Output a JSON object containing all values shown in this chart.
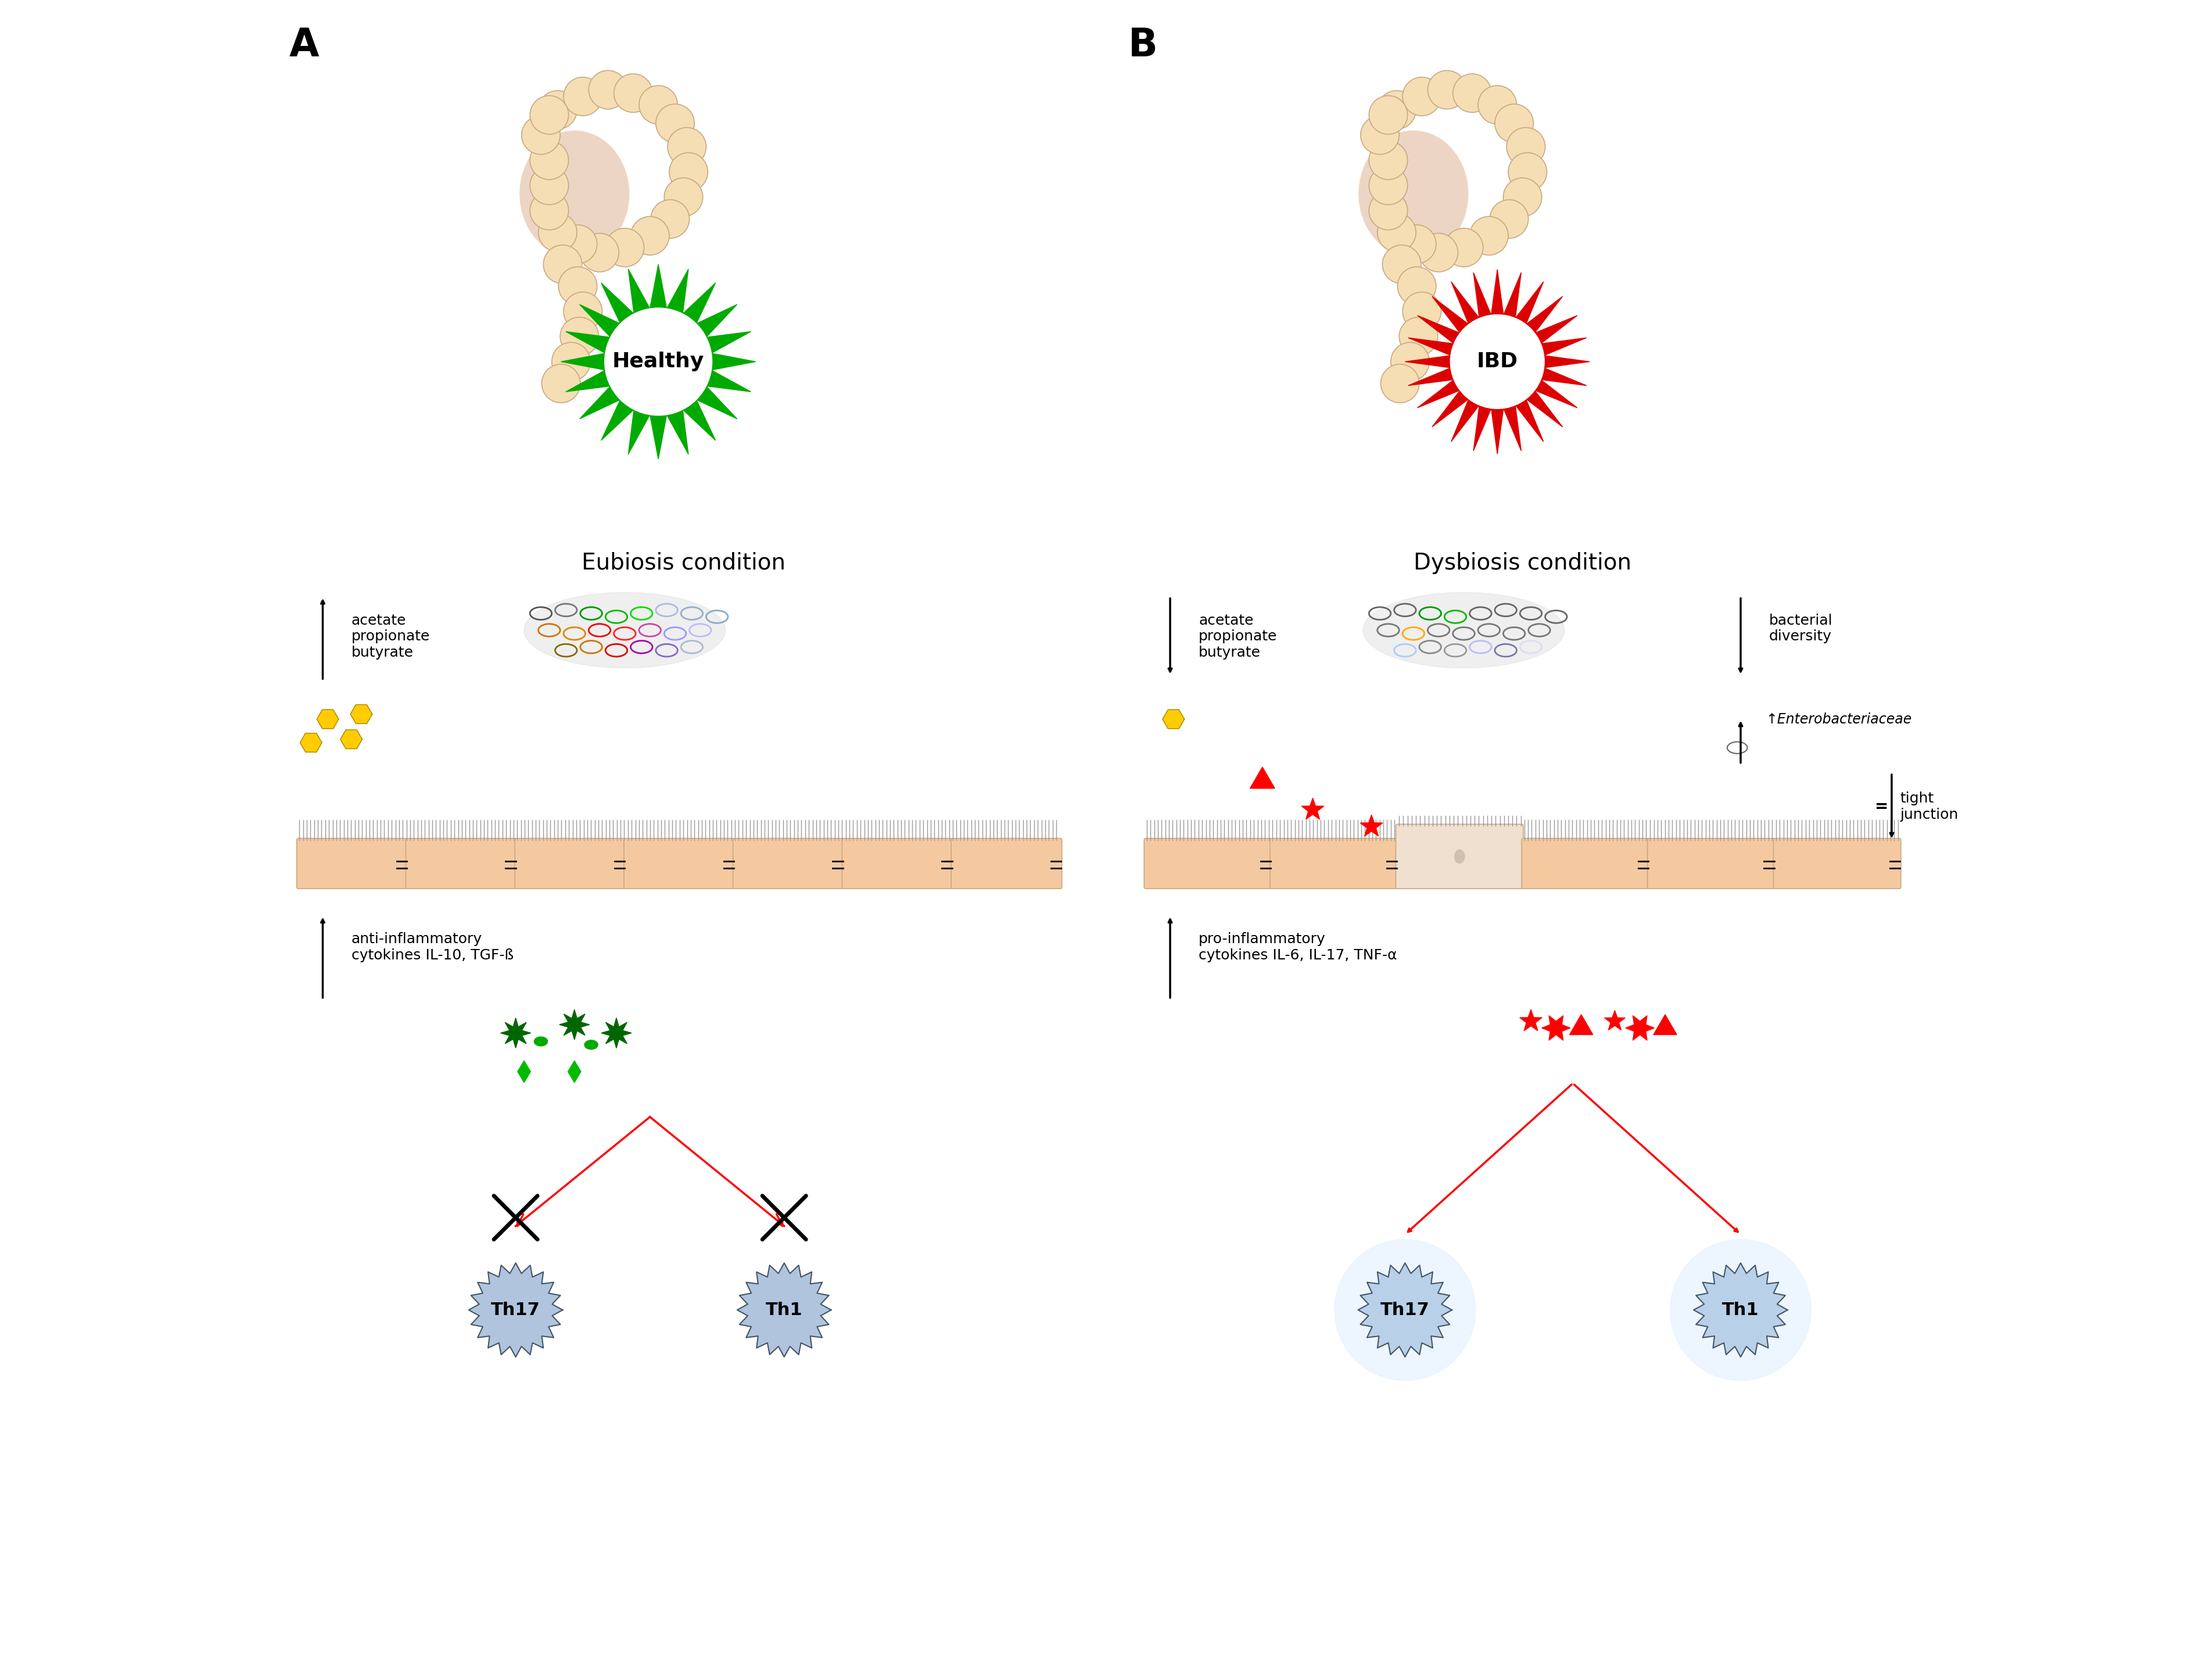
{
  "panel_A_label": "A",
  "panel_B_label": "B",
  "eubiosis_title": "Eubiosis condition",
  "dysbiosis_title": "Dysbiosis condition",
  "healthy_label": "Healthy",
  "ibd_label": "IBD",
  "green_color": "#00AA00",
  "red_color": "#DD0000",
  "gut_fill": "#F5DEB3",
  "gut_edge": "#C8A882",
  "cell_fill": "#F5C9A0",
  "cell_edge": "#C8A882",
  "arrow_up": "↑",
  "arrow_down": "↓",
  "text_acetate_propionate_butyrate": "acetate\npropionate\nbutyrate",
  "text_anti_inflam": "anti-inflammatory\ncytokines IL-10, TGF-ß",
  "text_pro_inflam": "pro-inflammatory\ncytokines IL-6, IL-17, TNF-α",
  "text_bacterial_diversity": "bacterial\ndiversity",
  "text_enterobacteriaceae": "↑Enterobacteriaceae",
  "text_tight_junction": "tight\njunction",
  "th17_label": "Th17",
  "th1_label": "Th1",
  "background_color": "#FFFFFF"
}
